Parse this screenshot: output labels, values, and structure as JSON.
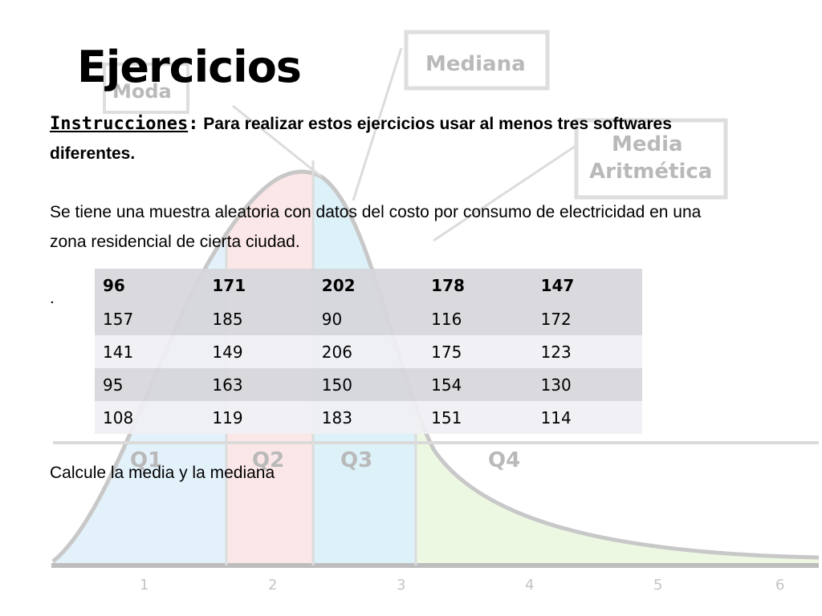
{
  "slide": {
    "title": "Ejercicios",
    "instructions_label": "Instrucciones",
    "instructions_colon": ":",
    "instructions_text": " Para realizar estos ejercicios  usar al menos tres softwares diferentes.",
    "paragraph": "Se tiene una muestra aleatoria con datos del costo por consumo de electricidad en una zona  residencial de cierta ciudad.",
    "dot": ".",
    "question": "Calcule la media y la mediana"
  },
  "table": {
    "rows": [
      [
        "96",
        "171",
        "202",
        "178",
        "147"
      ],
      [
        "157",
        "185",
        "90",
        "116",
        "172"
      ],
      [
        "141",
        "149",
        "206",
        "175",
        "123"
      ],
      [
        "95",
        "163",
        "150",
        "154",
        "130"
      ],
      [
        "108",
        "119",
        "183",
        "151",
        "114"
      ]
    ]
  },
  "background": {
    "labels": {
      "moda": "Moda",
      "mediana": "Mediana",
      "media_line1": "Media",
      "media_line2": "Aritmética",
      "q1": "Q1",
      "q2": "Q2",
      "q3": "Q3",
      "q4": "Q4"
    },
    "axis_ticks": [
      "1",
      "2",
      "3",
      "4",
      "5",
      "6"
    ],
    "colors": {
      "q1": "#e3f1fb",
      "q2": "#fbe7e7",
      "q3": "#dcf1f8",
      "q4": "#edf8e3",
      "curve": "#c8c8c8"
    }
  }
}
